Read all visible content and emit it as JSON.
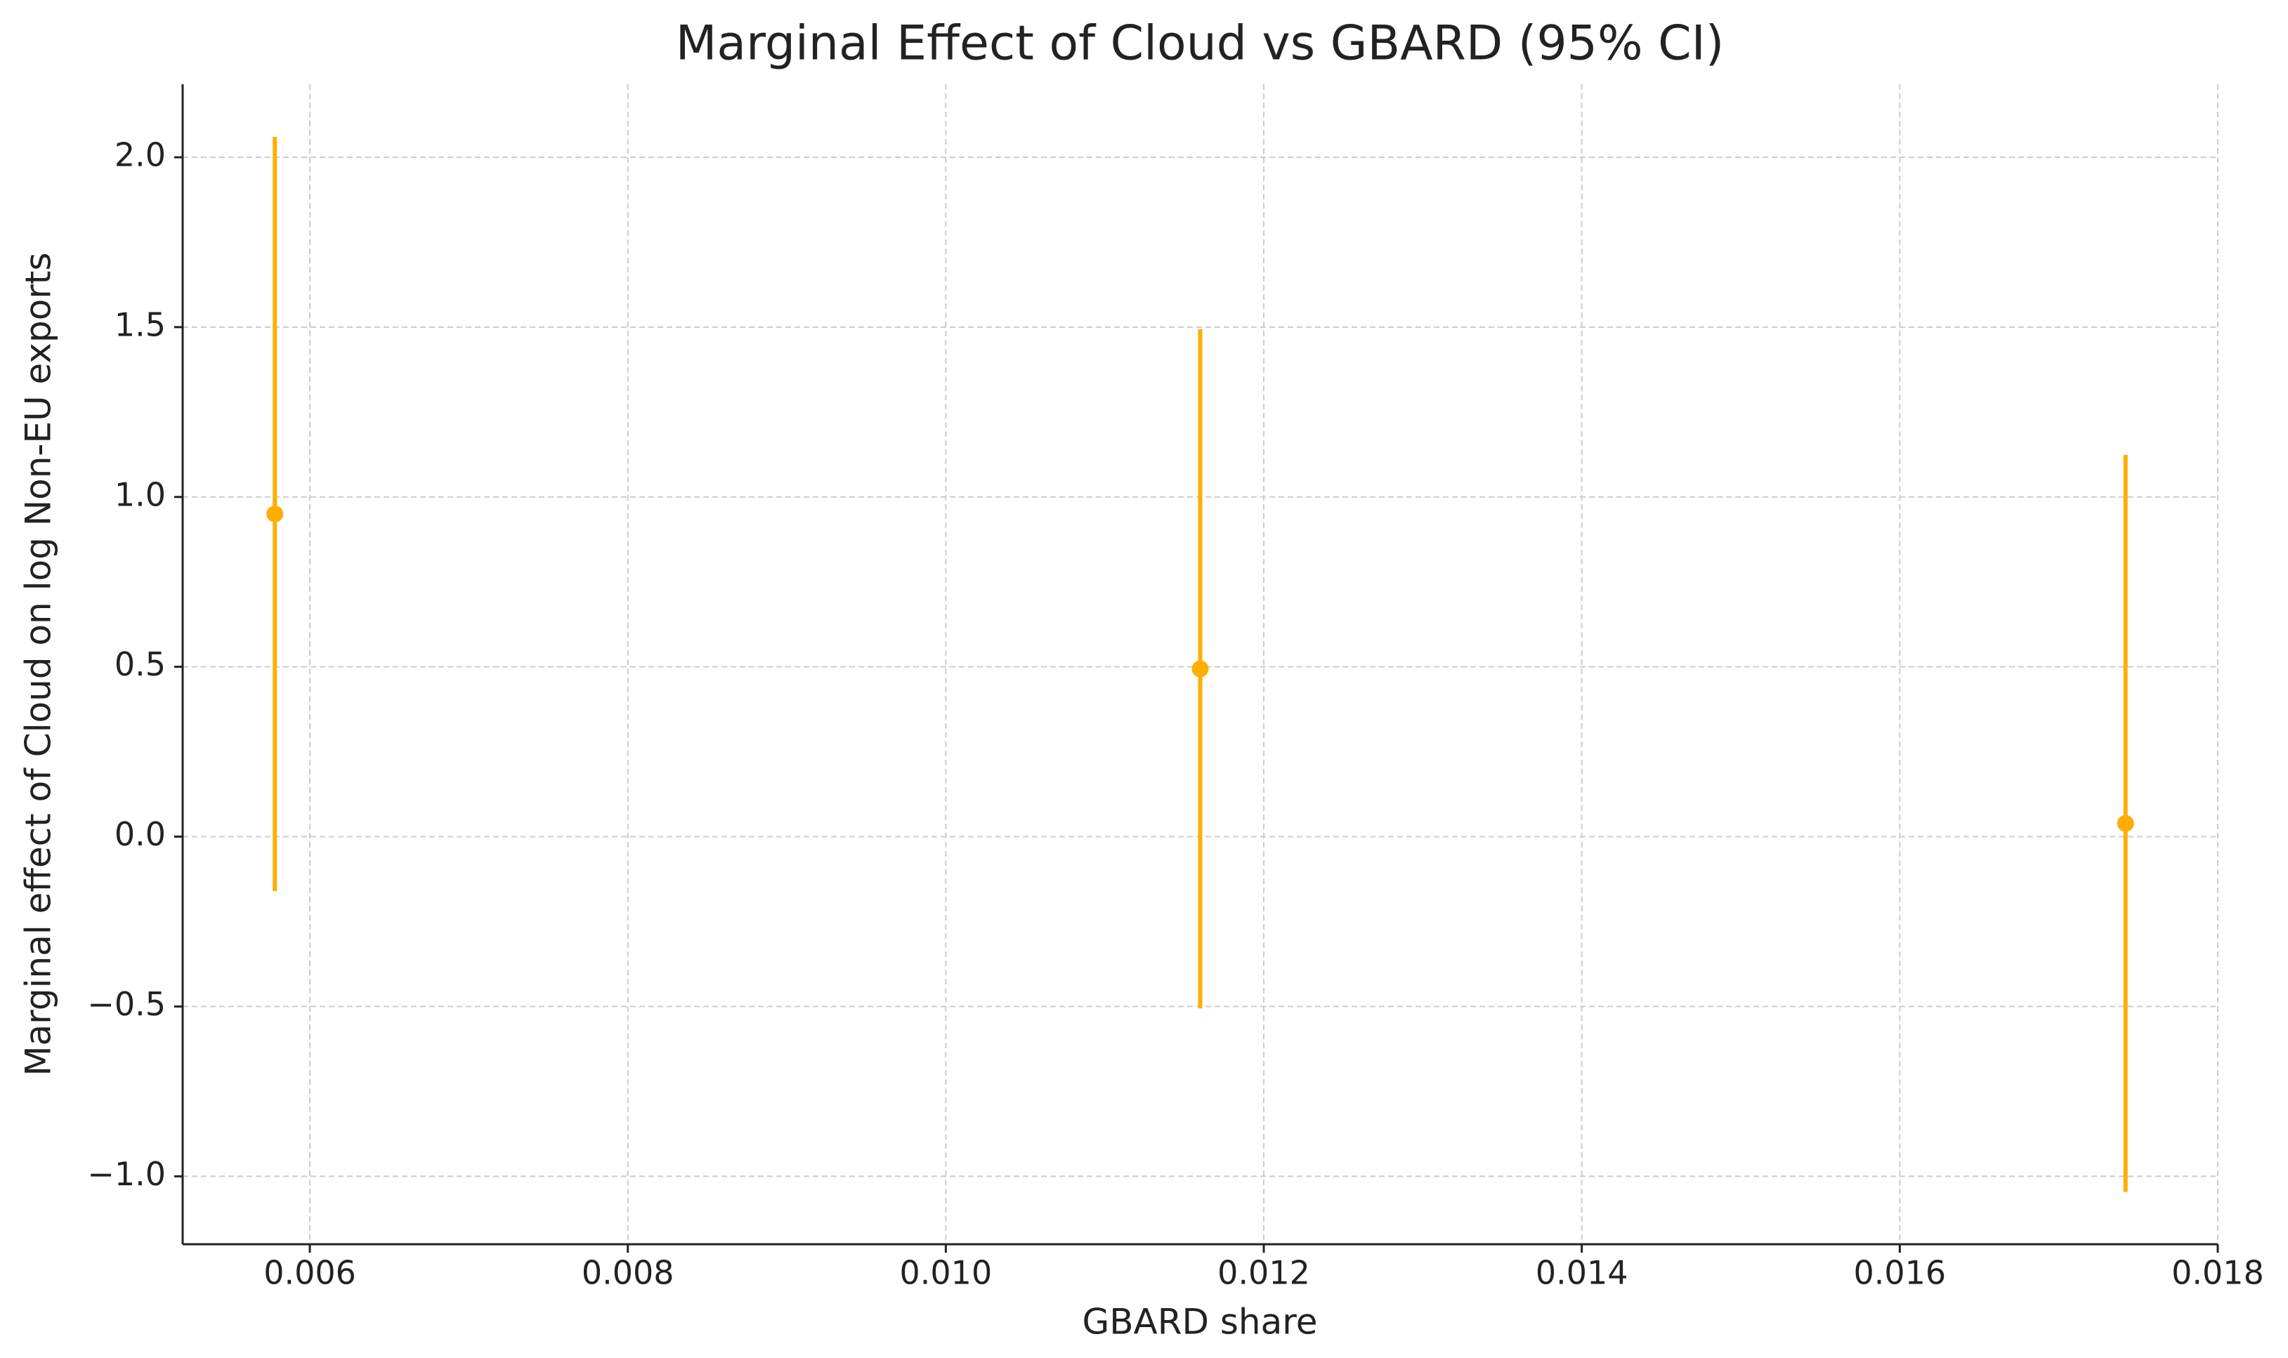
{
  "chart_data": {
    "type": "errorbar",
    "title": "Marginal Effect of Cloud vs GBARD (95% CI)",
    "xlabel": "GBARD share",
    "ylabel": "Marginal effect of Cloud on log Non-EU exports",
    "x": [
      0.00578,
      0.0116,
      0.01742
    ],
    "values": [
      0.95,
      0.494,
      0.039
    ],
    "errors": [
      1.11,
      1.0,
      1.085
    ],
    "color": "#ffae00",
    "xlim": [
      0.0052,
      0.018
    ],
    "ylim": [
      -1.2,
      2.215
    ],
    "xticks": [
      0.006,
      0.008,
      {
        "value": 0.01,
        "label": "0.010"
      },
      0.012,
      0.014,
      0.016,
      0.018
    ],
    "yticks": [
      {
        "value": -1,
        "label": "−1.0"
      },
      {
        "value": -0.5,
        "label": "−0.5"
      },
      {
        "value": 0,
        "label": "0.0"
      },
      0.5,
      {
        "value": 1,
        "label": "1.0"
      },
      1.5,
      {
        "value": 2,
        "label": "2.0"
      }
    ],
    "grid": true
  }
}
